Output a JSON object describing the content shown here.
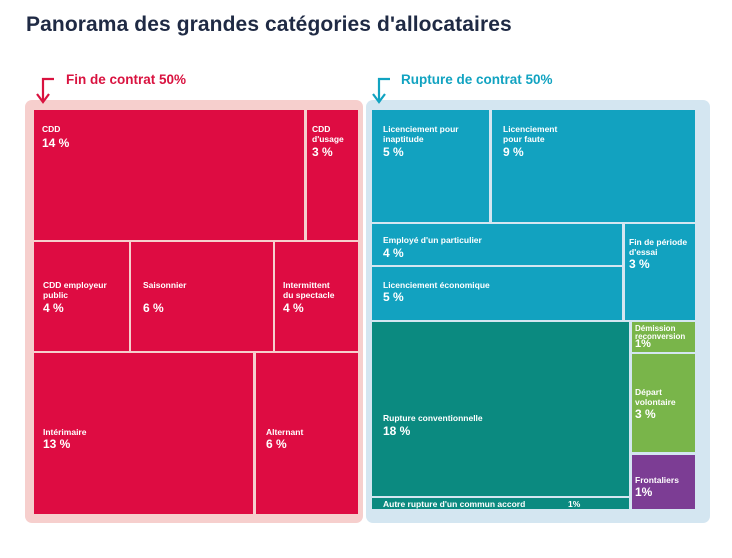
{
  "title": "Panorama des grandes catégories d'allocataires",
  "colors": {
    "fin_de_contrat": "#de0c42",
    "fin_panel": "#f6cfcd",
    "rupture_blue": "#12a2c0",
    "rupture_teal": "#0b8a80",
    "rupture_green": "#79b54a",
    "rupture_purple": "#7c3d94",
    "rupture_panel": "#d4e6f1",
    "title": "#1f2a44"
  },
  "chart_data": {
    "type": "treemap",
    "title": "Panorama des grandes catégories d'allocataires",
    "groups": [
      {
        "name": "Fin de contrat 50%",
        "items": [
          {
            "label": "CDD",
            "value": "14 %"
          },
          {
            "label": "CDD\nd'usage",
            "value": "3 %"
          },
          {
            "label": "CDD employeur\npublic",
            "value": "4 %"
          },
          {
            "label": "Saisonnier",
            "value": "6 %"
          },
          {
            "label": "Intermittent\ndu spectacle",
            "value": "4 %"
          },
          {
            "label": "Intérimaire",
            "value": "13 %"
          },
          {
            "label": "Alternant",
            "value": "6 %"
          }
        ]
      },
      {
        "name": "Rupture de contrat 50%",
        "items": [
          {
            "label": "Licenciement pour\ninaptitude",
            "value": "5 %"
          },
          {
            "label": "Licenciement\npour faute",
            "value": "9 %"
          },
          {
            "label": "Employé d'un particulier",
            "value": "4 %"
          },
          {
            "label": "Fin de période\nd'essai",
            "value": "3 %"
          },
          {
            "label": "Licenciement économique",
            "value": "5 %"
          },
          {
            "label": "Rupture conventionnelle",
            "value": "18 %"
          },
          {
            "label": "Autre rupture d'un commun accord",
            "value": "1%"
          },
          {
            "label": "Démission\nreconversion",
            "value": "1%"
          },
          {
            "label": "Départ\nvolontaire",
            "value": "3 %"
          },
          {
            "label": "Frontaliers",
            "value": "1%"
          }
        ]
      }
    ]
  }
}
